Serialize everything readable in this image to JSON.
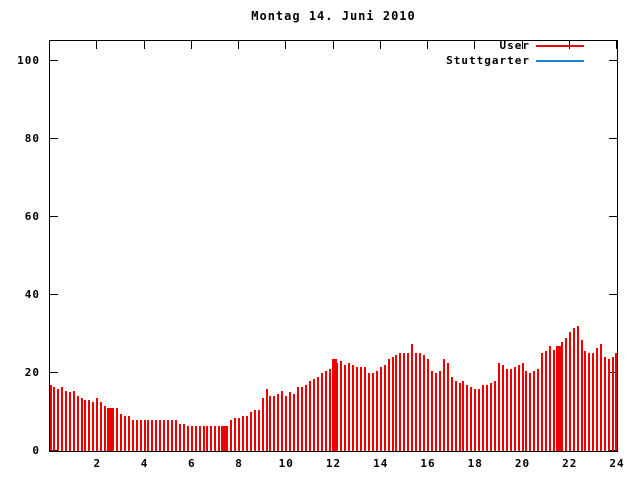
{
  "title": "Montag 14. Juni 2010",
  "colors": {
    "user_series": "#ee0000",
    "stuttgarter_series": "#1e7fd6",
    "axis": "#000000",
    "background": "#ffffff"
  },
  "legend": {
    "entries": [
      {
        "label": "User",
        "color_key": "user_series"
      },
      {
        "label": "Stuttgarter",
        "color_key": "stuttgarter_series"
      }
    ]
  },
  "chart_data": {
    "type": "bar",
    "style": "impulses",
    "title": "Montag 14. Juni 2010",
    "xlabel": "",
    "ylabel": "",
    "x_unit": "hour_of_day",
    "xlim": [
      0,
      24
    ],
    "ylim": [
      0,
      105
    ],
    "x_ticks": [
      2,
      4,
      6,
      8,
      10,
      12,
      14,
      16,
      18,
      20,
      22,
      24
    ],
    "y_ticks": [
      0,
      20,
      40,
      60,
      80,
      100
    ],
    "grid": false,
    "legend_position": "top-right-inside",
    "sample_interval_minutes": 10,
    "x_start_hour": 0,
    "series": [
      {
        "name": "User",
        "color": "#ee0000",
        "values": [
          17,
          16.5,
          16,
          16.5,
          15.5,
          15,
          15.5,
          14,
          13.5,
          13,
          13,
          12.5,
          13.5,
          12.5,
          11.5,
          11,
          11,
          11,
          9.5,
          9,
          9,
          8,
          8,
          8,
          8,
          8,
          8,
          8,
          8,
          8,
          8,
          8,
          8,
          7,
          7,
          6.5,
          6.5,
          6.5,
          6.5,
          6.5,
          6.5,
          6.5,
          6.5,
          6.5,
          6.5,
          6.5,
          8,
          8.5,
          8.5,
          9,
          9,
          10,
          10.5,
          10.5,
          13.5,
          16,
          14,
          14,
          14.5,
          15.5,
          14,
          15,
          14.5,
          16.5,
          16.5,
          17,
          18,
          18.5,
          19,
          20,
          20.5,
          21,
          23.5,
          22.5,
          23,
          22,
          22.5,
          22,
          21.5,
          21.5,
          21.5,
          20,
          20,
          20.5,
          21.5,
          22,
          23.5,
          24,
          24.5,
          25,
          25,
          25,
          27.5,
          25,
          25,
          24.5,
          23.5,
          20.5,
          20,
          20.5,
          23.5,
          22.5,
          19,
          18,
          17.5,
          18,
          17,
          16.5,
          16,
          16,
          17,
          17,
          17.5,
          18,
          22.5,
          22,
          21,
          21,
          21.5,
          22,
          22.5,
          20.5,
          20,
          20.5,
          21,
          25,
          25.5,
          27,
          26,
          27,
          28,
          29,
          30.5,
          31.5,
          32,
          28.5,
          25.5,
          25,
          25,
          26.5,
          27.5,
          24,
          23.5,
          24,
          25
        ]
      },
      {
        "name": "Stuttgarter",
        "color": "#1e7fd6",
        "values": []
      }
    ],
    "merged_spike_hours": [
      2.5,
      7.33,
      12.0,
      21.5
    ]
  }
}
